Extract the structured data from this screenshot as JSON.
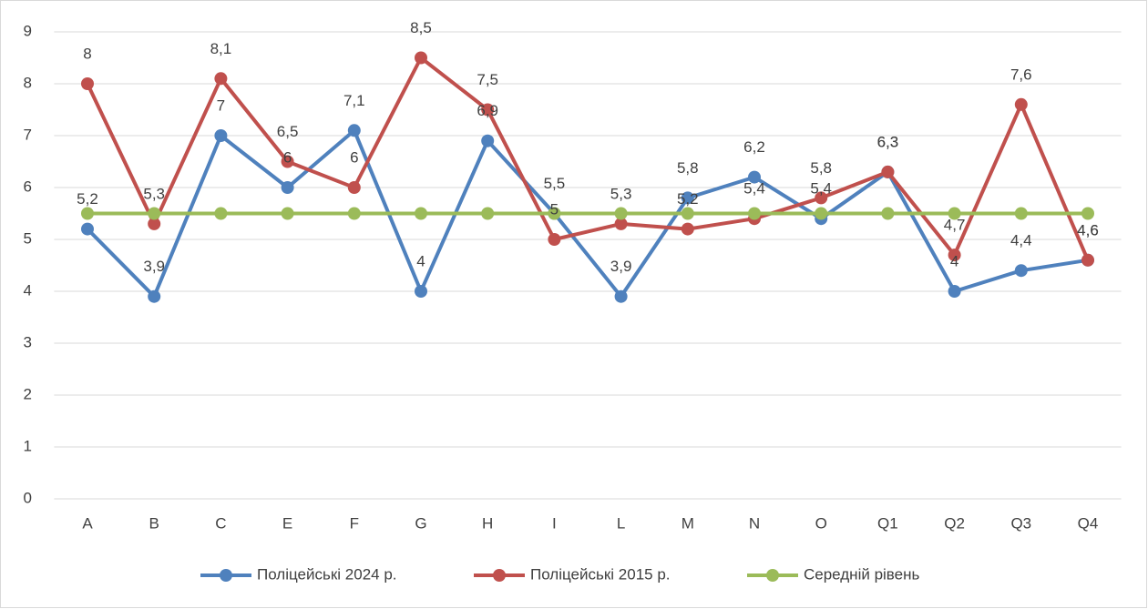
{
  "chart_data": {
    "type": "line",
    "categories": [
      "A",
      "B",
      "C",
      "E",
      "F",
      "G",
      "H",
      "I",
      "L",
      "M",
      "N",
      "O",
      "Q1",
      "Q2",
      "Q3",
      "Q4"
    ],
    "series": [
      {
        "name": "Поліцейські 2024 р.",
        "color": "#4f81bd",
        "values": [
          5.2,
          3.9,
          7,
          6,
          7.1,
          4,
          6.9,
          5.5,
          3.9,
          5.8,
          6.2,
          5.4,
          6.3,
          4,
          4.4,
          4.6
        ],
        "value_labels": [
          "5,2",
          "3,9",
          "7",
          "6",
          "7,1",
          "4",
          "6,9",
          "5,5",
          "3,9",
          "5,8",
          "6,2",
          "5,4",
          "6,3",
          "4",
          "4,4",
          "4,6"
        ]
      },
      {
        "name": "Поліцейські 2015 р.",
        "color": "#c0504d",
        "values": [
          8,
          5.3,
          8.1,
          6.5,
          6,
          8.5,
          7.5,
          5,
          5.3,
          5.2,
          5.4,
          5.8,
          6.3,
          4.7,
          7.6,
          4.6
        ],
        "value_labels": [
          "8",
          "5,3",
          "8,1",
          "6,5",
          "6",
          "8,5",
          "7,5",
          "5",
          "5,3",
          "5,2",
          "5,4",
          "5,8",
          "6,3",
          "4,7",
          "7,6",
          "4,6"
        ]
      },
      {
        "name": "Середній рівень",
        "color": "#9bbb59",
        "values": [
          5.5,
          5.5,
          5.5,
          5.5,
          5.5,
          5.5,
          5.5,
          5.5,
          5.5,
          5.5,
          5.5,
          5.5,
          5.5,
          5.5,
          5.5,
          5.5
        ]
      }
    ],
    "ylim": [
      0,
      9
    ],
    "yticks": [
      0,
      1,
      2,
      3,
      4,
      5,
      6,
      7,
      8,
      9
    ],
    "grid": true,
    "legend": "bottom"
  }
}
